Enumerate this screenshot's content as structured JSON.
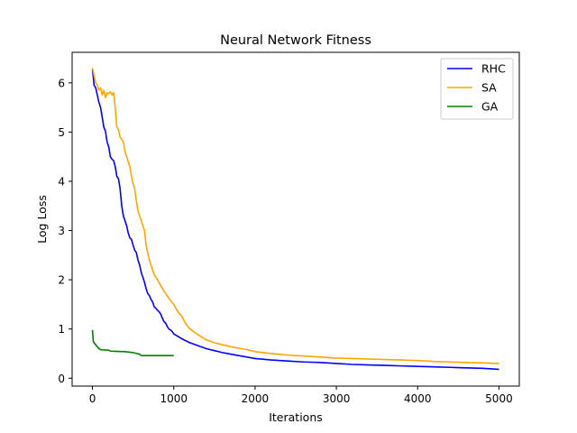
{
  "chart_data": {
    "type": "line",
    "title": "Neural Network Fitness",
    "xlabel": "Iterations",
    "ylabel": "Log Loss",
    "xlim": [
      -250,
      5250
    ],
    "ylim": [
      -0.16,
      6.62
    ],
    "xticks": [
      0,
      1000,
      2000,
      3000,
      4000,
      5000
    ],
    "yticks": [
      0,
      1,
      2,
      3,
      4,
      5,
      6
    ],
    "legend_position": "top-right",
    "grid": false,
    "series": [
      {
        "name": "RHC",
        "color": "#0000ff",
        "points": [
          [
            0,
            6.28
          ],
          [
            20,
            5.95
          ],
          [
            40,
            5.9
          ],
          [
            60,
            5.75
          ],
          [
            80,
            5.6
          ],
          [
            100,
            5.5
          ],
          [
            120,
            5.3
          ],
          [
            140,
            5.1
          ],
          [
            160,
            5.02
          ],
          [
            180,
            4.8
          ],
          [
            200,
            4.7
          ],
          [
            220,
            4.5
          ],
          [
            240,
            4.45
          ],
          [
            260,
            4.42
          ],
          [
            280,
            4.3
          ],
          [
            300,
            4.1
          ],
          [
            320,
            4.05
          ],
          [
            340,
            3.85
          ],
          [
            360,
            3.5
          ],
          [
            380,
            3.3
          ],
          [
            400,
            3.2
          ],
          [
            420,
            3.1
          ],
          [
            440,
            2.95
          ],
          [
            460,
            2.85
          ],
          [
            480,
            2.82
          ],
          [
            500,
            2.7
          ],
          [
            520,
            2.6
          ],
          [
            540,
            2.55
          ],
          [
            560,
            2.4
          ],
          [
            580,
            2.3
          ],
          [
            600,
            2.15
          ],
          [
            620,
            2.05
          ],
          [
            640,
            1.95
          ],
          [
            660,
            1.82
          ],
          [
            680,
            1.72
          ],
          [
            700,
            1.68
          ],
          [
            720,
            1.6
          ],
          [
            740,
            1.55
          ],
          [
            760,
            1.45
          ],
          [
            780,
            1.42
          ],
          [
            800,
            1.38
          ],
          [
            820,
            1.35
          ],
          [
            840,
            1.3
          ],
          [
            860,
            1.22
          ],
          [
            880,
            1.15
          ],
          [
            900,
            1.12
          ],
          [
            920,
            1.05
          ],
          [
            940,
            1.0
          ],
          [
            960,
            0.98
          ],
          [
            980,
            0.95
          ],
          [
            1000,
            0.9
          ],
          [
            1100,
            0.8
          ],
          [
            1200,
            0.72
          ],
          [
            1300,
            0.66
          ],
          [
            1400,
            0.6
          ],
          [
            1500,
            0.56
          ],
          [
            1600,
            0.52
          ],
          [
            1700,
            0.49
          ],
          [
            1800,
            0.46
          ],
          [
            1900,
            0.43
          ],
          [
            2000,
            0.4
          ],
          [
            2200,
            0.37
          ],
          [
            2400,
            0.35
          ],
          [
            2600,
            0.33
          ],
          [
            2800,
            0.32
          ],
          [
            3000,
            0.3
          ],
          [
            3200,
            0.28
          ],
          [
            3400,
            0.27
          ],
          [
            3600,
            0.26
          ],
          [
            3800,
            0.25
          ],
          [
            4000,
            0.24
          ],
          [
            4200,
            0.23
          ],
          [
            4400,
            0.22
          ],
          [
            4600,
            0.21
          ],
          [
            4800,
            0.2
          ],
          [
            5000,
            0.18
          ]
        ]
      },
      {
        "name": "SA",
        "color": "#ffa500",
        "points": [
          [
            0,
            6.3
          ],
          [
            20,
            6.15
          ],
          [
            40,
            6.0
          ],
          [
            60,
            5.95
          ],
          [
            80,
            5.85
          ],
          [
            100,
            5.9
          ],
          [
            120,
            5.75
          ],
          [
            140,
            5.85
          ],
          [
            160,
            5.7
          ],
          [
            180,
            5.8
          ],
          [
            200,
            5.78
          ],
          [
            220,
            5.82
          ],
          [
            240,
            5.75
          ],
          [
            260,
            5.8
          ],
          [
            280,
            5.5
          ],
          [
            300,
            5.1
          ],
          [
            320,
            5.05
          ],
          [
            340,
            4.9
          ],
          [
            360,
            4.85
          ],
          [
            380,
            4.8
          ],
          [
            400,
            4.6
          ],
          [
            420,
            4.5
          ],
          [
            440,
            4.4
          ],
          [
            460,
            4.3
          ],
          [
            480,
            4.1
          ],
          [
            500,
            3.95
          ],
          [
            520,
            3.85
          ],
          [
            540,
            3.6
          ],
          [
            560,
            3.4
          ],
          [
            580,
            3.3
          ],
          [
            600,
            3.2
          ],
          [
            620,
            3.1
          ],
          [
            640,
            3.0
          ],
          [
            660,
            2.7
          ],
          [
            680,
            2.55
          ],
          [
            700,
            2.4
          ],
          [
            720,
            2.3
          ],
          [
            740,
            2.2
          ],
          [
            760,
            2.1
          ],
          [
            780,
            2.05
          ],
          [
            800,
            2.0
          ],
          [
            850,
            1.85
          ],
          [
            900,
            1.72
          ],
          [
            950,
            1.6
          ],
          [
            1000,
            1.5
          ],
          [
            1050,
            1.35
          ],
          [
            1100,
            1.25
          ],
          [
            1150,
            1.1
          ],
          [
            1200,
            1.0
          ],
          [
            1300,
            0.88
          ],
          [
            1400,
            0.78
          ],
          [
            1500,
            0.72
          ],
          [
            1600,
            0.68
          ],
          [
            1700,
            0.64
          ],
          [
            1800,
            0.61
          ],
          [
            1900,
            0.58
          ],
          [
            2000,
            0.54
          ],
          [
            2200,
            0.5
          ],
          [
            2400,
            0.47
          ],
          [
            2600,
            0.45
          ],
          [
            2800,
            0.43
          ],
          [
            3000,
            0.41
          ],
          [
            3200,
            0.4
          ],
          [
            3400,
            0.39
          ],
          [
            3600,
            0.38
          ],
          [
            3800,
            0.37
          ],
          [
            4000,
            0.36
          ],
          [
            4200,
            0.34
          ],
          [
            4400,
            0.33
          ],
          [
            4600,
            0.32
          ],
          [
            4800,
            0.31
          ],
          [
            5000,
            0.3
          ]
        ]
      },
      {
        "name": "GA",
        "color": "#008000",
        "points": [
          [
            0,
            0.98
          ],
          [
            10,
            0.75
          ],
          [
            20,
            0.72
          ],
          [
            30,
            0.7
          ],
          [
            40,
            0.68
          ],
          [
            50,
            0.66
          ],
          [
            60,
            0.64
          ],
          [
            70,
            0.62
          ],
          [
            80,
            0.6
          ],
          [
            100,
            0.58
          ],
          [
            200,
            0.57
          ],
          [
            220,
            0.55
          ],
          [
            400,
            0.54
          ],
          [
            450,
            0.53
          ],
          [
            500,
            0.52
          ],
          [
            550,
            0.5
          ],
          [
            580,
            0.49
          ],
          [
            600,
            0.46
          ],
          [
            1000,
            0.46
          ]
        ]
      }
    ]
  }
}
